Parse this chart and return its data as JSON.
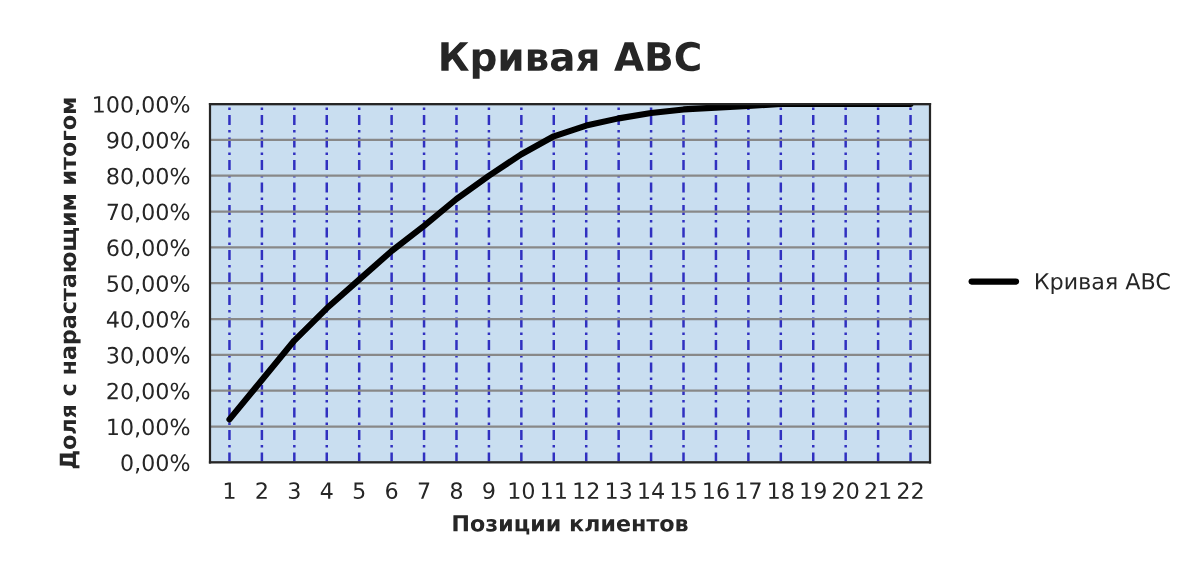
{
  "chart_data": {
    "type": "line",
    "title": "Кривая ABC",
    "xlabel": "Позиции клиентов",
    "ylabel": "Доля с нарастающим итогом",
    "categories": [
      "1",
      "2",
      "3",
      "4",
      "5",
      "6",
      "7",
      "8",
      "9",
      "10",
      "11",
      "12",
      "13",
      "14",
      "15",
      "16",
      "17",
      "18",
      "19",
      "20",
      "21",
      "22"
    ],
    "series": [
      {
        "name": "Кривая ABC",
        "color": "#000000",
        "values": [
          12,
          23,
          34,
          43,
          51,
          59,
          66,
          73.5,
          80,
          86,
          91,
          94,
          96,
          97.5,
          98.5,
          99,
          99.5,
          100,
          100,
          100,
          100,
          100
        ]
      }
    ],
    "ylim": [
      0,
      100
    ],
    "yticks": [
      {
        "value": 0,
        "label": "0,00%"
      },
      {
        "value": 10,
        "label": "10,00%"
      },
      {
        "value": 20,
        "label": "20,00%"
      },
      {
        "value": 30,
        "label": "30,00%"
      },
      {
        "value": 40,
        "label": "40,00%"
      },
      {
        "value": 50,
        "label": "50,00%"
      },
      {
        "value": 60,
        "label": "60,00%"
      },
      {
        "value": 70,
        "label": "70,00%"
      },
      {
        "value": 80,
        "label": "80,00%"
      },
      {
        "value": 90,
        "label": "90,00%"
      },
      {
        "value": 100,
        "label": "100,00%"
      }
    ],
    "grid": true,
    "legend": "right",
    "marker": "none",
    "line_style": "solid"
  }
}
